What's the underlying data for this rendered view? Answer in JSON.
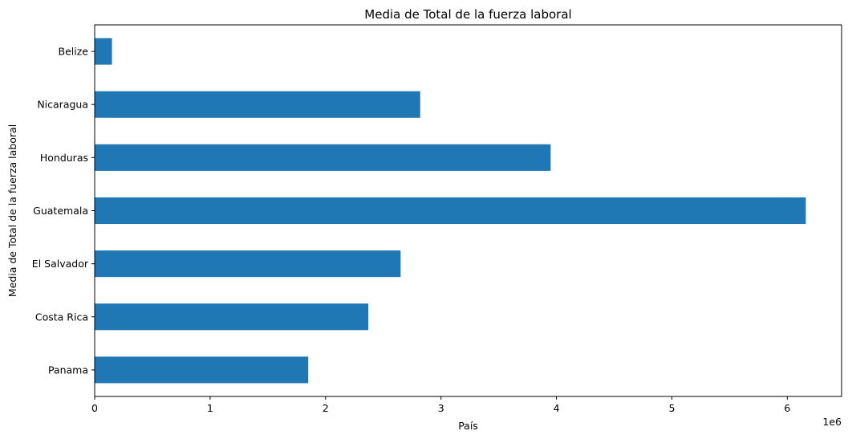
{
  "chart_data": {
    "type": "bar",
    "orientation": "horizontal",
    "title": "Media de Total de la fuerza laboral",
    "xlabel": "País",
    "ylabel": "Media de Total de la fuerza laboral",
    "x_scale_label": "1e6",
    "xlim": [
      0,
      6.47
    ],
    "x_ticks": [
      0,
      1,
      2,
      3,
      4,
      5,
      6
    ],
    "categories": [
      "Panama",
      "Costa Rica",
      "El Salvador",
      "Guatemala",
      "Honduras",
      "Nicaragua",
      "Belize"
    ],
    "values": [
      1.85,
      2.37,
      2.65,
      6.16,
      3.95,
      2.82,
      0.15
    ],
    "grid": false,
    "legend": "none",
    "bar_color": "#1f77b4"
  }
}
